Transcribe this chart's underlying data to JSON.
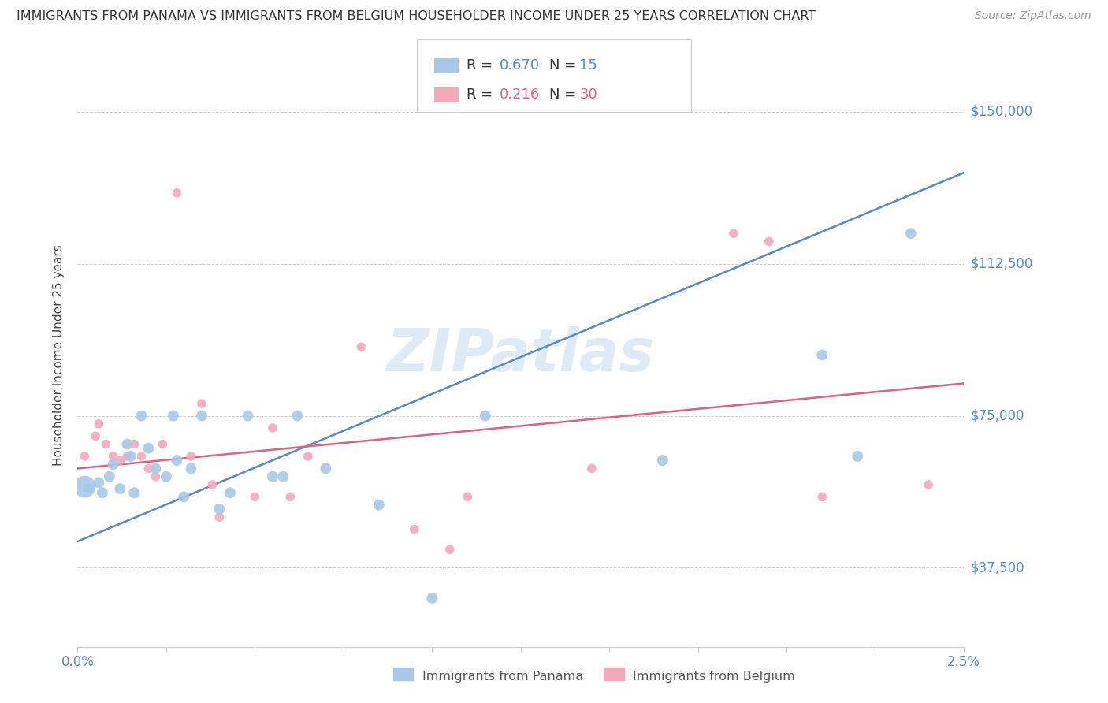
{
  "title": "IMMIGRANTS FROM PANAMA VS IMMIGRANTS FROM BELGIUM HOUSEHOLDER INCOME UNDER 25 YEARS CORRELATION CHART",
  "source": "Source: ZipAtlas.com",
  "ylabel": "Householder Income Under 25 years",
  "yticks": [
    37500,
    75000,
    112500,
    150000
  ],
  "ytick_labels": [
    "$37,500",
    "$75,000",
    "$112,500",
    "$150,000"
  ],
  "color_panama": "#A8C8E8",
  "color_belgium": "#F4A8BC",
  "color_line_panama": "#5588CC",
  "color_line_belgium": "#E06080",
  "color_ytick": "#5588CC",
  "color_title": "#333333",
  "color_source": "#999999",
  "watermark_text": "ZIPatlas",
  "xlim": [
    0,
    2.5
  ],
  "ylim": [
    18000,
    162000
  ],
  "panama_line_y0": 44000,
  "panama_line_y1": 135000,
  "belgium_line_y0": 62000,
  "belgium_line_y1": 83000,
  "panama_points": [
    [
      0.03,
      57000
    ],
    [
      0.06,
      58500
    ],
    [
      0.07,
      56000
    ],
    [
      0.09,
      60000
    ],
    [
      0.1,
      63000
    ],
    [
      0.12,
      57000
    ],
    [
      0.14,
      68000
    ],
    [
      0.15,
      65000
    ],
    [
      0.16,
      56000
    ],
    [
      0.18,
      75000
    ],
    [
      0.2,
      67000
    ],
    [
      0.22,
      62000
    ],
    [
      0.25,
      60000
    ],
    [
      0.27,
      75000
    ],
    [
      0.28,
      64000
    ],
    [
      0.3,
      55000
    ],
    [
      0.32,
      62000
    ],
    [
      0.35,
      75000
    ],
    [
      0.4,
      52000
    ],
    [
      0.43,
      56000
    ],
    [
      0.48,
      75000
    ],
    [
      0.55,
      60000
    ],
    [
      0.58,
      60000
    ],
    [
      0.62,
      75000
    ],
    [
      0.7,
      62000
    ],
    [
      0.85,
      53000
    ],
    [
      1.0,
      30000
    ],
    [
      1.15,
      75000
    ],
    [
      1.65,
      64000
    ],
    [
      2.1,
      90000
    ],
    [
      2.2,
      65000
    ],
    [
      2.35,
      120000
    ]
  ],
  "belgium_points": [
    [
      0.02,
      65000
    ],
    [
      0.05,
      70000
    ],
    [
      0.06,
      73000
    ],
    [
      0.08,
      68000
    ],
    [
      0.1,
      65000
    ],
    [
      0.12,
      64000
    ],
    [
      0.14,
      65000
    ],
    [
      0.16,
      68000
    ],
    [
      0.18,
      65000
    ],
    [
      0.2,
      62000
    ],
    [
      0.22,
      60000
    ],
    [
      0.24,
      68000
    ],
    [
      0.28,
      130000
    ],
    [
      0.32,
      65000
    ],
    [
      0.35,
      78000
    ],
    [
      0.38,
      58000
    ],
    [
      0.4,
      50000
    ],
    [
      0.5,
      55000
    ],
    [
      0.55,
      72000
    ],
    [
      0.6,
      55000
    ],
    [
      0.65,
      65000
    ],
    [
      0.8,
      92000
    ],
    [
      0.95,
      47000
    ],
    [
      1.05,
      42000
    ],
    [
      1.1,
      55000
    ],
    [
      1.45,
      62000
    ],
    [
      1.85,
      120000
    ],
    [
      1.95,
      118000
    ],
    [
      2.1,
      55000
    ],
    [
      2.4,
      58000
    ]
  ],
  "panama_big_point": [
    0.02,
    57500
  ],
  "panama_big_size": 400
}
